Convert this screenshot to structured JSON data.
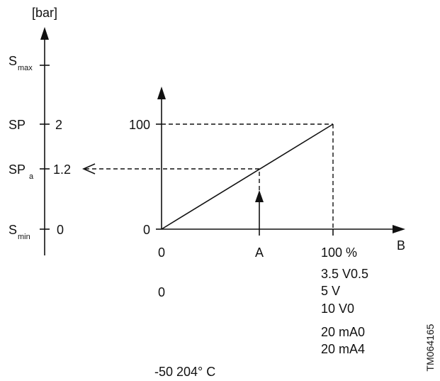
{
  "left_axis": {
    "unit": "[bar]",
    "labels": [
      {
        "name": "S",
        "sub": "max"
      },
      {
        "name": "SP",
        "value": "2"
      },
      {
        "name": "SP",
        "sub": "a",
        "value": "1.2"
      },
      {
        "name": "S",
        "sub": "min",
        "value": "0"
      }
    ]
  },
  "graph": {
    "y_labels": [
      "100",
      "0"
    ],
    "x_labels": [
      "0",
      "A",
      "100 %"
    ],
    "x_axis_label": "B"
  },
  "below": {
    "left": [
      "0"
    ],
    "right": [
      "3.5 V0.5",
      "5 V",
      "10 V0",
      "20 mA0",
      "20 mA4"
    ],
    "bottom": "-50 204° C"
  },
  "code": "TM064165"
}
